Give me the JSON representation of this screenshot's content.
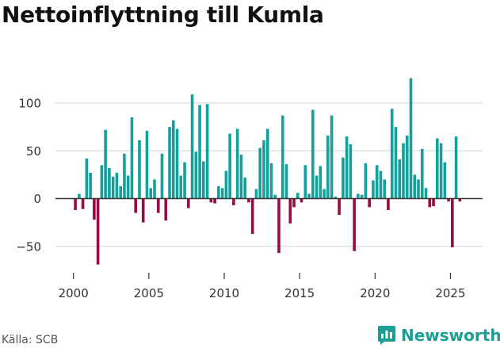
{
  "title": "Nettoinflyttning till Kumla",
  "source": "Källa: SCB",
  "brand": "Newsworthy",
  "colors": {
    "positive": "#16a09b",
    "negative": "#9b0a44",
    "grid": "#dddddd",
    "zero": "#333333",
    "brand": "#1b9e94"
  },
  "chart_data": {
    "type": "bar",
    "title": "Nettoinflyttning till Kumla",
    "xlabel": "",
    "ylabel": "",
    "frequency": "quarterly",
    "ylim": [
      -75,
      130
    ],
    "yticks": [
      -50,
      0,
      50,
      100
    ],
    "ytick_labels": [
      "−50",
      "0",
      "50",
      "100"
    ],
    "xticks": [
      2000,
      2005,
      2010,
      2015,
      2020,
      2025
    ],
    "xtick_labels": [
      "2000",
      "2005",
      "2010",
      "2015",
      "2020",
      "2025"
    ],
    "grid": true,
    "series": [
      {
        "year": 2000,
        "values": [
          -12,
          5,
          -11,
          42
        ]
      },
      {
        "year": 2001,
        "values": [
          27,
          -22,
          -69,
          35
        ]
      },
      {
        "year": 2002,
        "values": [
          72,
          32,
          23,
          27
        ]
      },
      {
        "year": 2003,
        "values": [
          13,
          47,
          24,
          85
        ]
      },
      {
        "year": 2004,
        "values": [
          -15,
          61,
          -25,
          71
        ]
      },
      {
        "year": 2005,
        "values": [
          11,
          20,
          -15,
          47
        ]
      },
      {
        "year": 2006,
        "values": [
          -23,
          75,
          82,
          73
        ]
      },
      {
        "year": 2007,
        "values": [
          24,
          38,
          -10,
          109
        ]
      },
      {
        "year": 2008,
        "values": [
          49,
          98,
          39,
          99
        ]
      },
      {
        "year": 2009,
        "values": [
          -4,
          -5,
          13,
          11
        ]
      },
      {
        "year": 2010,
        "values": [
          29,
          68,
          -7,
          73
        ]
      },
      {
        "year": 2011,
        "values": [
          46,
          22,
          -4,
          -37
        ]
      },
      {
        "year": 2012,
        "values": [
          10,
          53,
          61,
          73
        ]
      },
      {
        "year": 2013,
        "values": [
          37,
          4,
          -57,
          87
        ]
      },
      {
        "year": 2014,
        "values": [
          36,
          -26,
          -9,
          6
        ]
      },
      {
        "year": 2015,
        "values": [
          -4,
          35,
          5,
          93
        ]
      },
      {
        "year": 2016,
        "values": [
          24,
          34,
          10,
          66
        ]
      },
      {
        "year": 2017,
        "values": [
          87,
          2,
          -17,
          43
        ]
      },
      {
        "year": 2018,
        "values": [
          65,
          57,
          -55,
          5
        ]
      },
      {
        "year": 2019,
        "values": [
          4,
          37,
          -9,
          19
        ]
      },
      {
        "year": 2020,
        "values": [
          35,
          29,
          20,
          -12
        ]
      },
      {
        "year": 2021,
        "values": [
          94,
          75,
          41,
          58
        ]
      },
      {
        "year": 2022,
        "values": [
          66,
          126,
          25,
          20
        ]
      },
      {
        "year": 2023,
        "values": [
          52,
          11,
          -9,
          -8
        ]
      },
      {
        "year": 2024,
        "values": [
          63,
          58,
          38,
          -3
        ]
      },
      {
        "year": 2025,
        "values": [
          -51,
          65,
          -3
        ]
      }
    ]
  }
}
